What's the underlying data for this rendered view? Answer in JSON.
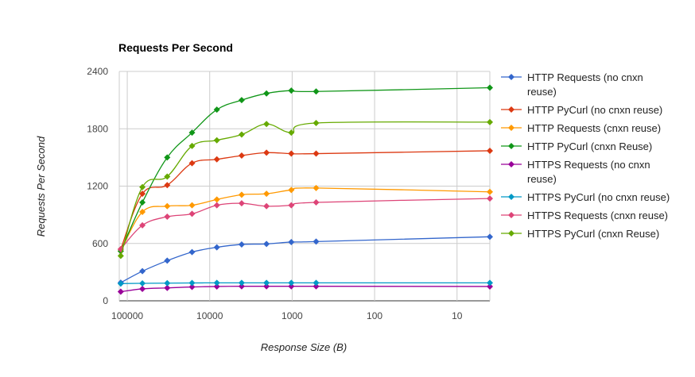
{
  "chart_data": {
    "type": "line",
    "title": "Requests Per Second",
    "xlabel": "Response Size (B)",
    "ylabel": "Requests Per Second",
    "x_scale": "log",
    "x_reversed": true,
    "xlim": [
      125000,
      4
    ],
    "ylim": [
      0,
      2400
    ],
    "yticks": [
      0,
      600,
      1200,
      1800,
      2400
    ],
    "yticks_labels": [
      "0",
      "600",
      "1200",
      "1800",
      "2400"
    ],
    "xticks": [
      100000,
      10000,
      1000,
      100,
      10
    ],
    "xticks_labels": [
      "100000",
      "10000",
      "1000",
      "100",
      "10"
    ],
    "grid": true,
    "legend_position": "right",
    "x": [
      120000,
      65536,
      32768,
      16384,
      8192,
      4096,
      2048,
      1024,
      512,
      4
    ],
    "series": [
      {
        "name": "HTTP Requests (no cnxn reuse)",
        "color": "#3366cc",
        "values": [
          190,
          310,
          420,
          510,
          560,
          590,
          595,
          615,
          620,
          670
        ]
      },
      {
        "name": "HTTP PyCurl (no cnxn reuse)",
        "color": "#dc3912",
        "values": [
          540,
          1120,
          1210,
          1440,
          1480,
          1520,
          1550,
          1540,
          1540,
          1570
        ]
      },
      {
        "name": "HTTP Requests (cnxn reuse)",
        "color": "#ff9900",
        "values": [
          520,
          930,
          990,
          1000,
          1060,
          1110,
          1120,
          1160,
          1180,
          1140
        ]
      },
      {
        "name": "HTTP PyCurl (cnxn Reuse)",
        "color": "#109618",
        "values": [
          520,
          1030,
          1500,
          1760,
          2000,
          2100,
          2170,
          2200,
          2190,
          2230
        ]
      },
      {
        "name": "HTTPS Requests (no cnxn reuse)",
        "color": "#990099",
        "values": [
          95,
          125,
          135,
          145,
          150,
          152,
          152,
          152,
          152,
          150
        ]
      },
      {
        "name": "HTTPS PyCurl (no cnxn reuse)",
        "color": "#0099c6",
        "values": [
          180,
          183,
          185,
          187,
          188,
          188,
          188,
          188,
          188,
          188
        ]
      },
      {
        "name": "HTTPS Requests (cnxn reuse)",
        "color": "#dd4477",
        "values": [
          540,
          790,
          880,
          910,
          1000,
          1020,
          990,
          1000,
          1030,
          1070
        ]
      },
      {
        "name": "HTTPS PyCurl (cnxn Reuse)",
        "color": "#66aa00",
        "values": [
          470,
          1190,
          1300,
          1620,
          1680,
          1740,
          1850,
          1760,
          1860,
          1870
        ]
      }
    ],
    "legend_lines": [
      [
        "HTTP Requests (no cnxn",
        "reuse)"
      ],
      [
        "HTTP PyCurl (no cnxn reuse)"
      ],
      [
        "HTTP Requests (cnxn reuse)"
      ],
      [
        "HTTP PyCurl (cnxn Reuse)"
      ],
      [
        "HTTPS Requests (no cnxn",
        "reuse)"
      ],
      [
        "HTTPS PyCurl (no cnxn reuse)"
      ],
      [
        "HTTPS Requests (cnxn reuse)"
      ],
      [
        "HTTPS PyCurl (cnxn Reuse)"
      ]
    ]
  }
}
